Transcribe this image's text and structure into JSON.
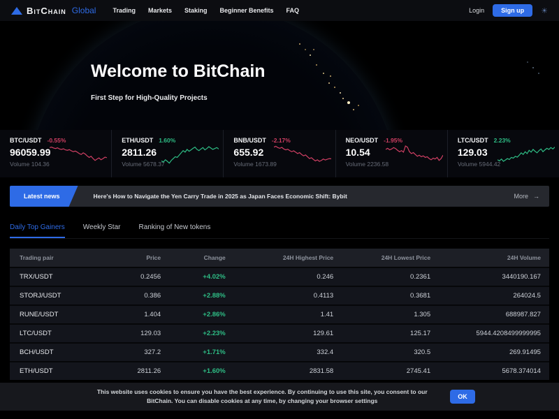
{
  "header": {
    "brand_name": "BitChain",
    "brand_suffix": "Global",
    "nav": [
      "Trading",
      "Markets",
      "Staking",
      "Beginner Benefits",
      "FAQ"
    ],
    "login_label": "Login",
    "signup_label": "Sign up",
    "theme_icon": "☀"
  },
  "hero": {
    "title": "Welcome to BitChain",
    "subtitle": "First Step for High-Quality Projects"
  },
  "tickers": [
    {
      "pair": "BTC/USDT",
      "change": "-0.55%",
      "price": "96059.99",
      "volume_label": "Volume",
      "volume": "104.36",
      "trend": "down",
      "spark": [
        78,
        80,
        76,
        74,
        77,
        72,
        70,
        73,
        68,
        66,
        69,
        64,
        60,
        63,
        58,
        52,
        48,
        55,
        50,
        42,
        35,
        40,
        30,
        22,
        28,
        33,
        25,
        30,
        36,
        34
      ]
    },
    {
      "pair": "ETH/USDT",
      "change": "1.60%",
      "price": "2811.26",
      "volume_label": "Volume",
      "volume": "5678.37",
      "trend": "up",
      "spark": [
        20,
        15,
        25,
        18,
        10,
        22,
        30,
        38,
        35,
        45,
        55,
        65,
        58,
        70,
        62,
        68,
        75,
        80,
        70,
        65,
        72,
        78,
        68,
        74,
        82,
        76,
        70,
        74,
        78,
        72
      ]
    },
    {
      "pair": "BNB/USDT",
      "change": "-2.17%",
      "price": "655.92",
      "volume_label": "Volume",
      "volume": "1673.89",
      "trend": "down",
      "spark": [
        80,
        84,
        78,
        75,
        79,
        72,
        68,
        71,
        65,
        60,
        64,
        58,
        52,
        56,
        48,
        42,
        46,
        38,
        30,
        34,
        26,
        20,
        25,
        18,
        22,
        28,
        24,
        27,
        30,
        29
      ]
    },
    {
      "pair": "NEO/USDT",
      "change": "-1.95%",
      "price": "10.54",
      "volume_label": "Volume",
      "volume": "2236.58",
      "trend": "down",
      "spark": [
        70,
        75,
        68,
        72,
        78,
        74,
        66,
        60,
        65,
        58,
        85,
        80,
        60,
        52,
        56,
        48,
        40,
        45,
        38,
        42,
        35,
        38,
        30,
        25,
        32,
        28,
        35,
        22,
        30,
        45
      ]
    },
    {
      "pair": "LTC/USDT",
      "change": "2.23%",
      "price": "129.03",
      "volume_label": "Volume",
      "volume": "5944.42",
      "trend": "up",
      "spark": [
        25,
        20,
        28,
        18,
        24,
        30,
        26,
        35,
        32,
        40,
        36,
        45,
        55,
        48,
        60,
        52,
        66,
        58,
        70,
        62,
        55,
        65,
        72,
        60,
        68,
        75,
        70,
        78,
        72,
        80
      ]
    }
  ],
  "news": {
    "badge": "Latest news",
    "headline": "Here's How to Navigate the Yen Carry Trade in 2025 as Japan Faces Economic Shift: Bybit",
    "more_label": "More",
    "more_arrow": "→"
  },
  "tabs": [
    {
      "label": "Daily Top Gainers",
      "active": true
    },
    {
      "label": "Weekly Star",
      "active": false
    },
    {
      "label": "Ranking of New tokens",
      "active": false
    }
  ],
  "market_table": {
    "columns": [
      "Trading pair",
      "Price",
      "Change",
      "24H Highest Price",
      "24H Lowest Price",
      "24H Volume"
    ],
    "rows": [
      {
        "pair": "TRX/USDT",
        "price": "0.2456",
        "change": "+4.02%",
        "high": "0.246",
        "low": "0.2361",
        "volume": "3440190.167"
      },
      {
        "pair": "STORJ/USDT",
        "price": "0.386",
        "change": "+2.88%",
        "high": "0.4113",
        "low": "0.3681",
        "volume": "264024.5"
      },
      {
        "pair": "RUNE/USDT",
        "price": "1.404",
        "change": "+2.86%",
        "high": "1.41",
        "low": "1.305",
        "volume": "688987.827"
      },
      {
        "pair": "LTC/USDT",
        "price": "129.03",
        "change": "+2.23%",
        "high": "129.61",
        "low": "125.17",
        "volume": "5944.4208499999995"
      },
      {
        "pair": "BCH/USDT",
        "price": "327.2",
        "change": "+1.71%",
        "high": "332.4",
        "low": "320.5",
        "volume": "269.91495"
      },
      {
        "pair": "ETH/USDT",
        "price": "2811.26",
        "change": "+1.60%",
        "high": "2831.58",
        "low": "2745.41",
        "volume": "5678.374014"
      }
    ]
  },
  "cookie": {
    "message": "This website uses cookies to ensure you have the best experience. By continuing to use this site, you consent to our BitChain. You can disable cookies at any time, by changing your browser settings",
    "ok_label": "OK"
  },
  "colors": {
    "accent": "#2e6be6",
    "green": "#2ebd85",
    "red": "#cf3f63"
  }
}
